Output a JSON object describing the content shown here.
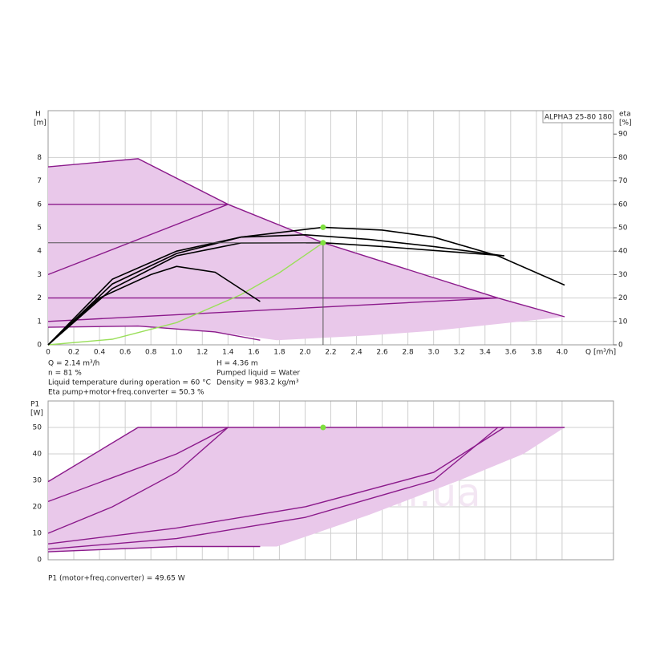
{
  "chart_data": [
    {
      "type": "line",
      "title": "ALPHA3 25-80 180",
      "y_label": "H",
      "y_unit": "[m]",
      "y2_label": "eta",
      "y2_unit": "[%]",
      "x_label": "Q [m³/h]",
      "xlim": [
        0,
        4.4
      ],
      "xticks": [
        0,
        0.2,
        0.4,
        0.6,
        0.8,
        {
          "value": 1,
          "label": "1.0"
        },
        1.2,
        1.4,
        1.6,
        1.8,
        {
          "value": 2,
          "label": "2.0"
        },
        2.2,
        2.4,
        2.6,
        2.8,
        {
          "value": 3,
          "label": "3.0"
        },
        3.2,
        3.4,
        3.6,
        3.8,
        {
          "value": 4,
          "label": "4.0"
        }
      ],
      "ylim": [
        0,
        10
      ],
      "yticks": [
        0,
        1,
        2,
        3,
        4,
        5,
        6,
        7,
        8
      ],
      "y2lim": [
        0,
        100
      ],
      "y2ticks": [
        0,
        10,
        20,
        30,
        40,
        50,
        60,
        70,
        80,
        90
      ],
      "grid": true,
      "crosshair": {
        "x": 2.14,
        "y": 4.36
      },
      "series": [
        {
          "style": "area",
          "color": "#e9c8ea",
          "x": [
            0,
            0.7,
            1.4,
            2.14,
            3.5,
            4.02,
            3.6,
            3.0,
            2.5,
            1.78,
            1.3,
            0.7,
            0
          ],
          "values": [
            7.6,
            7.95,
            6.0,
            4.36,
            2.0,
            1.2,
            0.95,
            0.6,
            0.4,
            0.2,
            0.55,
            0.8,
            0.75
          ]
        },
        {
          "style": "line",
          "color": "#8b1a8b",
          "x": [
            0,
            0.7,
            1.4,
            2.14,
            3.5,
            4.02
          ],
          "values": [
            7.6,
            7.95,
            6.0,
            4.36,
            2.0,
            1.2
          ]
        },
        {
          "style": "line",
          "color": "#8b1a8b",
          "x": [
            0,
            1.4
          ],
          "values": [
            6,
            6
          ]
        },
        {
          "style": "line",
          "color": "#8b1a8b",
          "x": [
            0,
            3.5
          ],
          "values": [
            2,
            2
          ]
        },
        {
          "style": "line",
          "color": "#8b1a8b",
          "x": [
            0,
            1.4
          ],
          "values": [
            3,
            6
          ]
        },
        {
          "style": "line",
          "color": "#8b1a8b",
          "x": [
            0,
            3.5
          ],
          "values": [
            1,
            2
          ]
        },
        {
          "style": "line",
          "color": "#8b1a8b",
          "x": [
            0,
            0.7,
            1.3,
            1.65
          ],
          "values": [
            0.75,
            0.8,
            0.55,
            0.2
          ]
        },
        {
          "style": "line",
          "color": "#9adf5a",
          "x": [
            0,
            0.5,
            1,
            1.5,
            1.8,
            2.14
          ],
          "values": [
            0,
            0.24,
            0.95,
            2.14,
            3.08,
            4.36
          ]
        },
        {
          "style": "line",
          "color": "#000000",
          "x": [
            0,
            0.5,
            1,
            1.5,
            2.14,
            2.6,
            3,
            3.5,
            4.02
          ],
          "values": [
            0,
            2.6,
            3.9,
            4.6,
            5.02,
            4.9,
            4.6,
            3.8,
            2.55
          ]
        },
        {
          "style": "line",
          "color": "#000000",
          "x": [
            0,
            0.5,
            1,
            1.5,
            2,
            2.5,
            3,
            3.55
          ],
          "values": [
            0,
            2.8,
            4.0,
            4.6,
            4.7,
            4.5,
            4.2,
            3.8
          ]
        },
        {
          "style": "line",
          "color": "#000000",
          "x": [
            0,
            0.5,
            1,
            1.5,
            2.14,
            2.6,
            3.55
          ],
          "values": [
            0,
            2.4,
            3.8,
            4.35,
            4.36,
            4.2,
            3.8
          ]
        },
        {
          "style": "line",
          "color": "#000000",
          "x": [
            0,
            0.4,
            0.8,
            1.0,
            1.3,
            1.65
          ],
          "values": [
            0,
            2.0,
            3.0,
            3.35,
            3.1,
            1.85
          ]
        }
      ],
      "markers": [
        {
          "x": 2.14,
          "y": 4.36,
          "color": "#7fe040"
        },
        {
          "x": 2.14,
          "y": 5.02,
          "color": "#7fe040"
        }
      ],
      "annotations": [
        "Q = 2.14 m³/h",
        "n = 81 %",
        "Liquid temperature during operation = 60 °C",
        "Eta pump+motor+freq.converter = 50.3 %",
        "H = 4.36 m",
        "Pumped liquid = Water",
        "Density = 983.2 kg/m³"
      ]
    },
    {
      "type": "line",
      "y_label": "P1",
      "y_unit": "[W]",
      "xlim": [
        0,
        4.4
      ],
      "ylim": [
        0,
        60
      ],
      "yticks": [
        0,
        10,
        20,
        30,
        40,
        50
      ],
      "grid": true,
      "series": [
        {
          "style": "area",
          "color": "#e9c8ea",
          "x": [
            0,
            0.7,
            4.02,
            3.7,
            3.2,
            2.5,
            1.78,
            1.0,
            0
          ],
          "values": [
            29.5,
            50,
            50,
            40,
            30,
            17,
            5,
            5,
            3
          ]
        },
        {
          "style": "line",
          "color": "#8b1a8b",
          "x": [
            0,
            0.7,
            4.02
          ],
          "values": [
            29.5,
            50,
            50
          ]
        },
        {
          "style": "line",
          "color": "#8b1a8b",
          "x": [
            0,
            0.5,
            1.0,
            1.4
          ],
          "values": [
            22,
            31,
            40,
            50
          ]
        },
        {
          "style": "line",
          "color": "#8b1a8b",
          "x": [
            0,
            0.5,
            1.0,
            1.4
          ],
          "values": [
            10,
            20,
            33,
            50
          ]
        },
        {
          "style": "line",
          "color": "#8b1a8b",
          "x": [
            0,
            1,
            2,
            3,
            3.55
          ],
          "values": [
            6,
            12,
            20,
            33,
            50
          ]
        },
        {
          "style": "line",
          "color": "#8b1a8b",
          "x": [
            0,
            1,
            2,
            3,
            3.5
          ],
          "values": [
            4,
            8,
            16,
            30,
            50
          ]
        },
        {
          "style": "line",
          "color": "#8b1a8b",
          "x": [
            0,
            1,
            1.65
          ],
          "values": [
            3,
            5,
            5
          ]
        }
      ],
      "markers": [
        {
          "x": 2.14,
          "y": 50,
          "color": "#7fe040"
        }
      ],
      "annotations": [
        "P1 (motor+freq.converter) = 49.65 W"
      ],
      "watermark": "aquato.com.ua"
    }
  ]
}
